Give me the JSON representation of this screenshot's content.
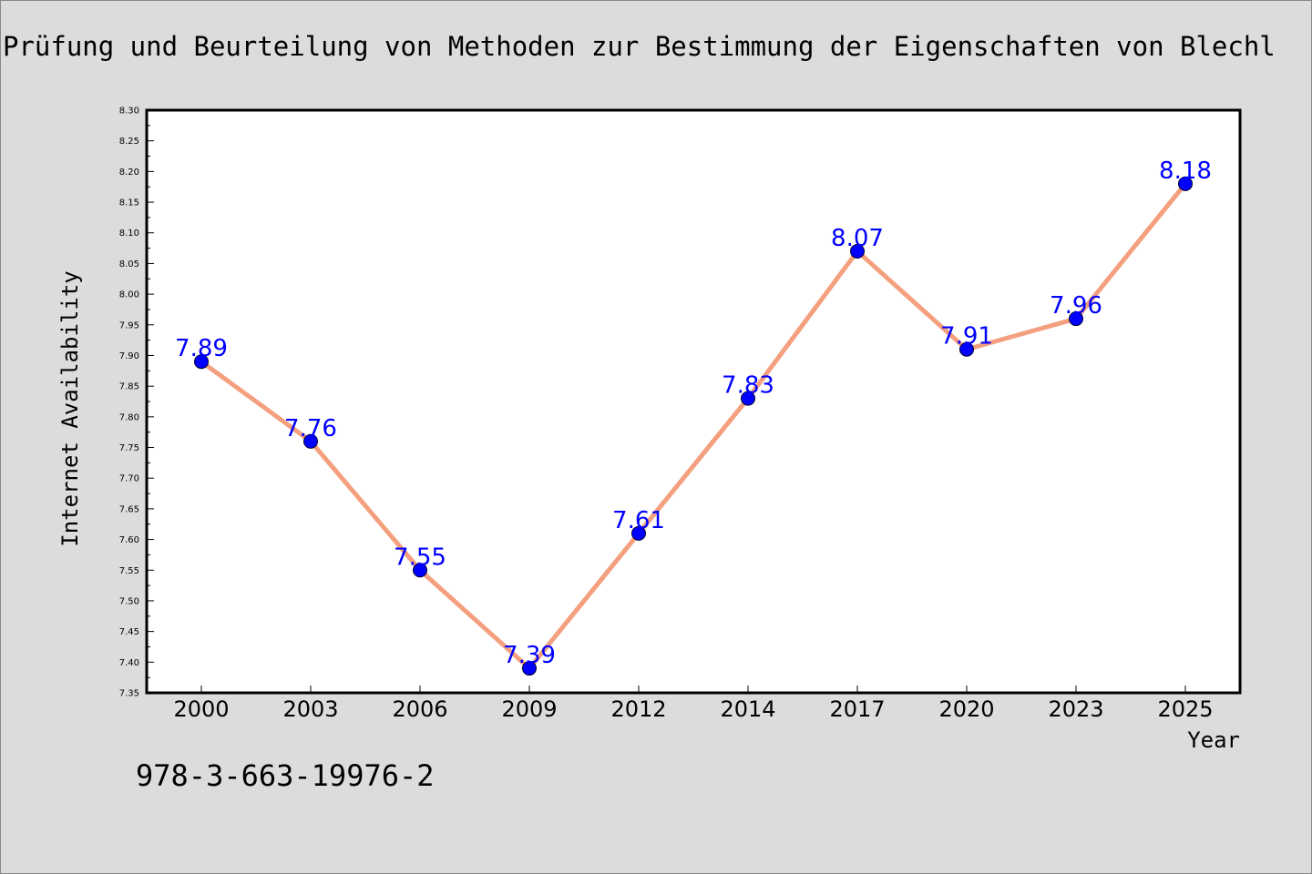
{
  "title": "Prüfung und Beurteilung von Methoden zur Bestimmung der Eigenschaften von Blechl",
  "footer_code": "978-3-663-19976-2",
  "chart_data": {
    "type": "line",
    "categories": [
      "2000",
      "2003",
      "2006",
      "2009",
      "2012",
      "2014",
      "2017",
      "2020",
      "2023",
      "2025"
    ],
    "series": [
      {
        "values": [
          7.89,
          7.76,
          7.55,
          7.39,
          7.61,
          7.83,
          8.07,
          7.91,
          7.96,
          8.18
        ]
      }
    ],
    "data_labels": [
      "7.89",
      "7.76",
      "7.55",
      "7.39",
      "7.61",
      "7.83",
      "8.07",
      "7.91",
      "7.96",
      "8.18"
    ],
    "y_ticks": [
      "7.35",
      "7.40",
      "7.45",
      "7.50",
      "7.55",
      "7.60",
      "7.65",
      "7.70",
      "7.75",
      "7.80",
      "7.85",
      "7.90",
      "7.95",
      "8.00",
      "8.05",
      "8.10",
      "8.15",
      "8.20",
      "8.25",
      "8.30"
    ],
    "xlabel": "Year",
    "ylabel": "Internet Availability",
    "ylim": [
      7.35,
      8.3
    ],
    "grid": false,
    "colors": {
      "line": "#f4a07f",
      "marker": "#0000ff",
      "label": "#0000ff",
      "axis": "#000000",
      "background": "#dcdcdc",
      "plot_background": "#ffffff"
    }
  }
}
